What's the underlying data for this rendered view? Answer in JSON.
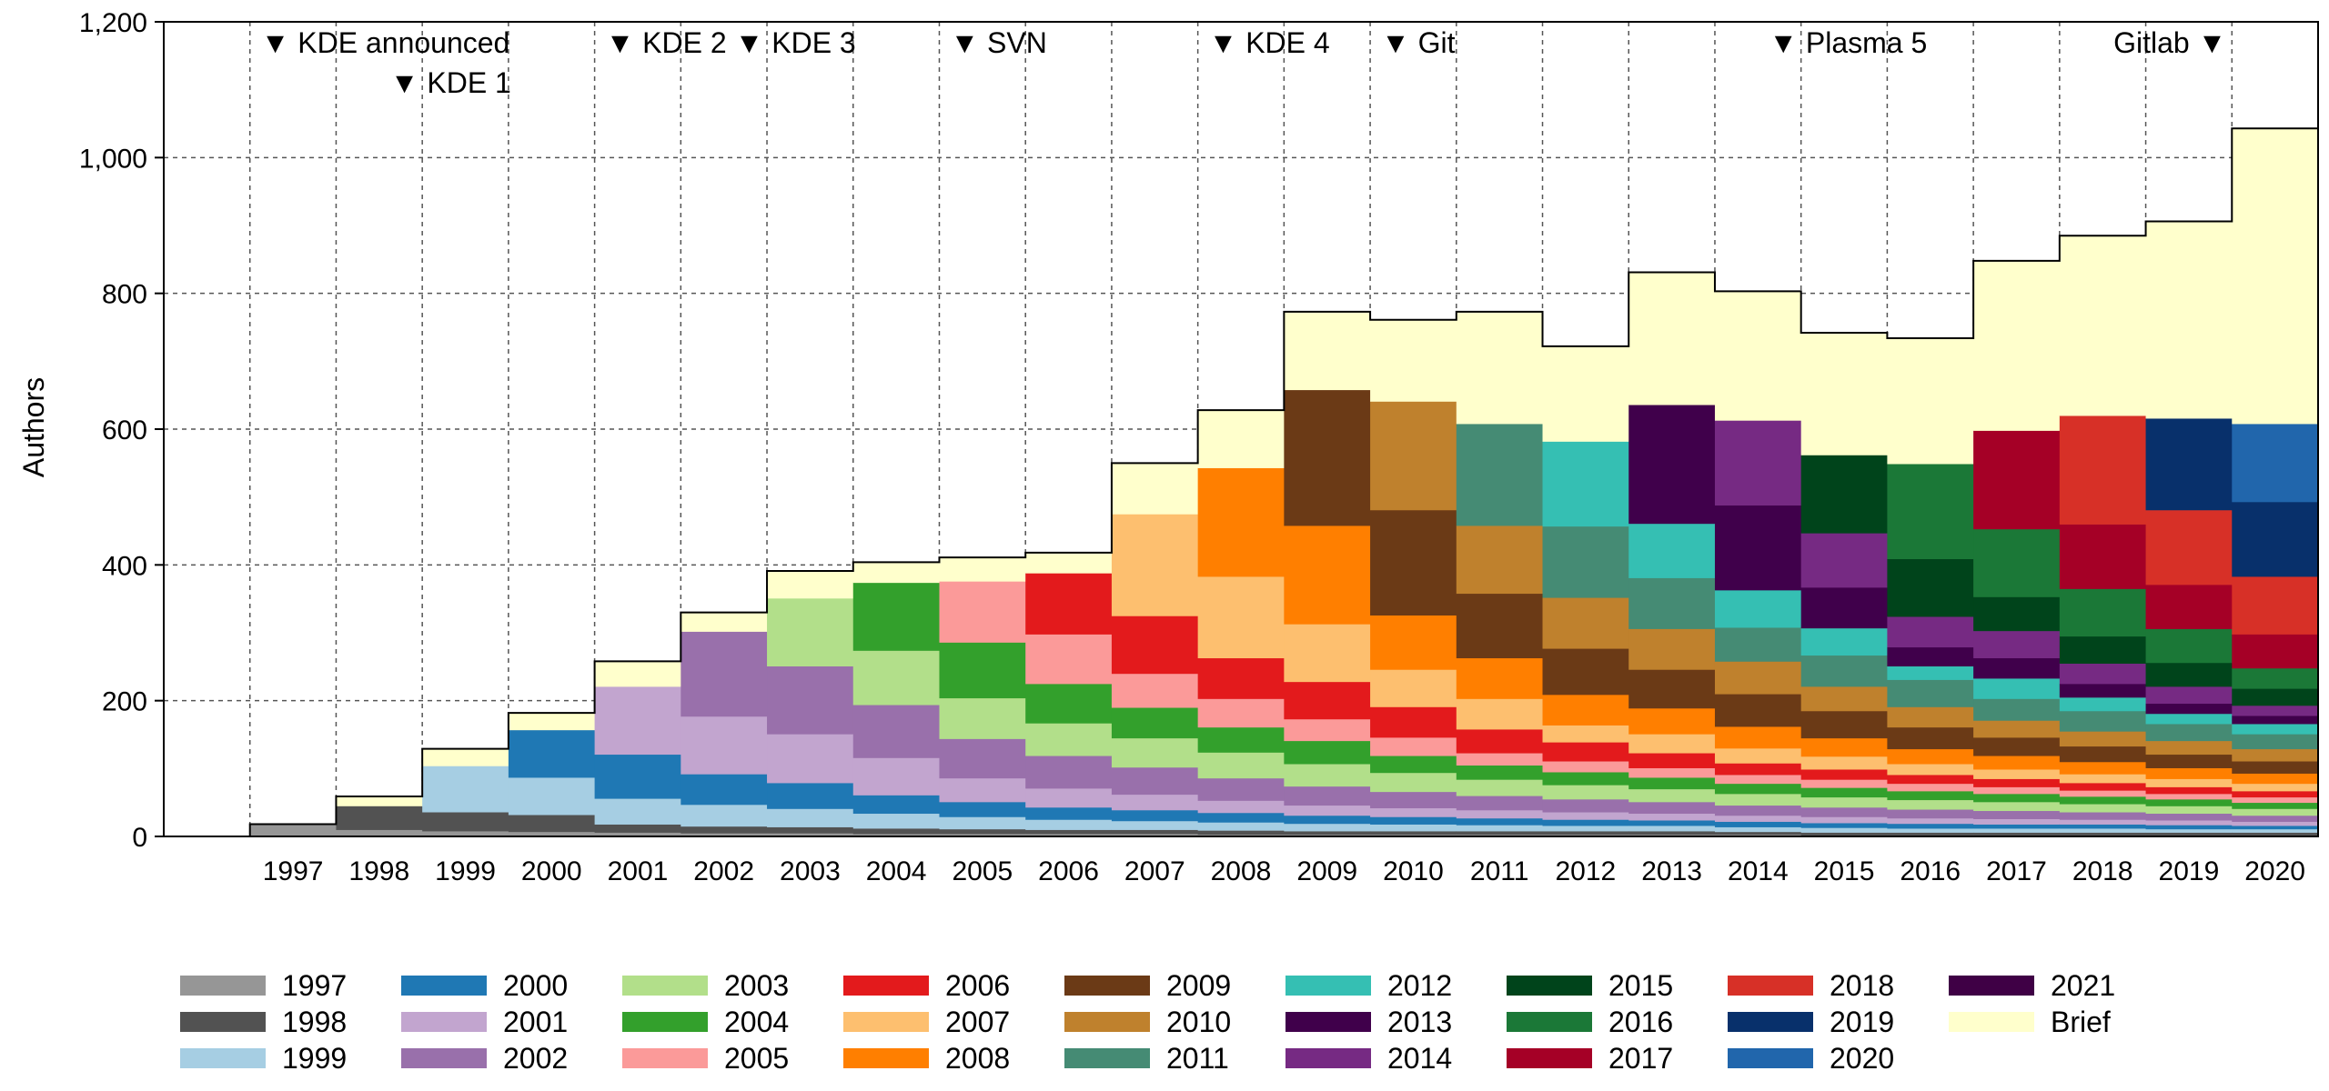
{
  "chart_data": {
    "type": "bar",
    "stacked": true,
    "title": "",
    "xlabel": "",
    "ylabel": "Authors",
    "ylim": [
      0,
      1200
    ],
    "yticks": [
      0,
      200,
      400,
      600,
      800,
      1000,
      1200
    ],
    "ytick_labels": [
      "0",
      "200",
      "400",
      "600",
      "800",
      "1,000",
      "1,200"
    ],
    "grid": true,
    "legend_position": "bottom",
    "categories": [
      "1997",
      "1998",
      "1999",
      "2000",
      "2001",
      "2002",
      "2003",
      "2004",
      "2005",
      "2006",
      "2007",
      "2008",
      "2009",
      "2010",
      "2011",
      "2012",
      "2013",
      "2014",
      "2015",
      "2016",
      "2017",
      "2018",
      "2019",
      "2020"
    ],
    "series": [
      {
        "name": "1997",
        "color": "#969696",
        "values": [
          18,
          10,
          8,
          7,
          6,
          5,
          5,
          4,
          4,
          4,
          4,
          3,
          3,
          3,
          3,
          3,
          3,
          3,
          2,
          2,
          2,
          2,
          2,
          2
        ]
      },
      {
        "name": "1998",
        "color": "#525252",
        "values": [
          0,
          35,
          28,
          25,
          12,
          10,
          9,
          8,
          7,
          6,
          6,
          6,
          5,
          5,
          5,
          5,
          5,
          4,
          4,
          4,
          4,
          4,
          4,
          4
        ]
      },
      {
        "name": "1999",
        "color": "#a6cee3",
        "values": [
          0,
          0,
          68,
          55,
          38,
          32,
          27,
          22,
          18,
          15,
          13,
          12,
          11,
          10,
          9,
          8,
          8,
          7,
          7,
          6,
          6,
          6,
          5,
          5
        ]
      },
      {
        "name": "2000",
        "color": "#1f78b4",
        "values": [
          0,
          0,
          0,
          70,
          65,
          45,
          38,
          27,
          22,
          18,
          16,
          14,
          12,
          11,
          10,
          9,
          8,
          8,
          7,
          7,
          6,
          6,
          6,
          5
        ]
      },
      {
        "name": "2001",
        "color": "#c2a5cf",
        "values": [
          0,
          0,
          0,
          0,
          100,
          85,
          72,
          55,
          35,
          28,
          23,
          18,
          15,
          13,
          12,
          11,
          10,
          9,
          9,
          8,
          8,
          7,
          7,
          6
        ]
      },
      {
        "name": "2002",
        "color": "#9970ab",
        "values": [
          0,
          0,
          0,
          0,
          0,
          125,
          100,
          78,
          58,
          48,
          40,
          33,
          28,
          24,
          21,
          19,
          17,
          15,
          14,
          13,
          12,
          11,
          10,
          9
        ]
      },
      {
        "name": "2003",
        "color": "#b2df8a",
        "values": [
          0,
          0,
          0,
          0,
          0,
          0,
          100,
          80,
          60,
          48,
          43,
          38,
          33,
          28,
          24,
          21,
          19,
          17,
          15,
          14,
          13,
          12,
          11,
          10
        ]
      },
      {
        "name": "2004",
        "color": "#33a02c",
        "values": [
          0,
          0,
          0,
          0,
          0,
          0,
          0,
          100,
          82,
          58,
          45,
          37,
          34,
          25,
          21,
          19,
          17,
          15,
          14,
          13,
          12,
          11,
          10,
          9
        ]
      },
      {
        "name": "2005",
        "color": "#fb9a99",
        "values": [
          0,
          0,
          0,
          0,
          0,
          0,
          0,
          0,
          90,
          73,
          50,
          42,
          32,
          27,
          18,
          16,
          14,
          13,
          12,
          11,
          10,
          9,
          8,
          8
        ]
      },
      {
        "name": "2006",
        "color": "#e31a1c",
        "values": [
          0,
          0,
          0,
          0,
          0,
          0,
          0,
          0,
          0,
          90,
          85,
          60,
          55,
          45,
          35,
          28,
          22,
          17,
          15,
          13,
          12,
          11,
          10,
          9
        ]
      },
      {
        "name": "2007",
        "color": "#fdbf6f",
        "values": [
          0,
          0,
          0,
          0,
          0,
          0,
          0,
          0,
          0,
          0,
          150,
          120,
          85,
          55,
          45,
          25,
          28,
          22,
          19,
          16,
          14,
          13,
          12,
          11
        ]
      },
      {
        "name": "2008",
        "color": "#ff7f00",
        "values": [
          0,
          0,
          0,
          0,
          0,
          0,
          0,
          0,
          0,
          0,
          0,
          160,
          145,
          80,
          60,
          45,
          38,
          32,
          27,
          22,
          20,
          18,
          16,
          15
        ]
      },
      {
        "name": "2009",
        "color": "#6b3a16",
        "values": [
          0,
          0,
          0,
          0,
          0,
          0,
          0,
          0,
          0,
          0,
          0,
          0,
          200,
          155,
          95,
          68,
          57,
          48,
          40,
          32,
          27,
          23,
          20,
          18
        ]
      },
      {
        "name": "2010",
        "color": "#bf812d",
        "values": [
          0,
          0,
          0,
          0,
          0,
          0,
          0,
          0,
          0,
          0,
          0,
          0,
          0,
          160,
          100,
          75,
          60,
          48,
          36,
          30,
          25,
          22,
          20,
          18
        ]
      },
      {
        "name": "2011",
        "color": "#458b74",
        "values": [
          0,
          0,
          0,
          0,
          0,
          0,
          0,
          0,
          0,
          0,
          0,
          0,
          0,
          0,
          150,
          105,
          75,
          50,
          46,
          40,
          32,
          30,
          25,
          22
        ]
      },
      {
        "name": "2012",
        "color": "#35bfb3",
        "values": [
          0,
          0,
          0,
          0,
          0,
          0,
          0,
          0,
          0,
          0,
          0,
          0,
          0,
          0,
          0,
          125,
          80,
          55,
          40,
          20,
          30,
          20,
          15,
          15
        ]
      },
      {
        "name": "2013",
        "color": "#40004b",
        "values": [
          0,
          0,
          0,
          0,
          0,
          0,
          0,
          0,
          0,
          0,
          0,
          0,
          0,
          0,
          0,
          0,
          175,
          125,
          60,
          28,
          30,
          20,
          15,
          12
        ]
      },
      {
        "name": "2014",
        "color": "#762a83",
        "values": [
          0,
          0,
          0,
          0,
          0,
          0,
          0,
          0,
          0,
          0,
          0,
          0,
          0,
          0,
          0,
          0,
          0,
          125,
          80,
          45,
          40,
          30,
          25,
          15
        ]
      },
      {
        "name": "2015",
        "color": "#00441b",
        "values": [
          0,
          0,
          0,
          0,
          0,
          0,
          0,
          0,
          0,
          0,
          0,
          0,
          0,
          0,
          0,
          0,
          0,
          0,
          115,
          85,
          50,
          40,
          35,
          25
        ]
      },
      {
        "name": "2016",
        "color": "#1b7837",
        "values": [
          0,
          0,
          0,
          0,
          0,
          0,
          0,
          0,
          0,
          0,
          0,
          0,
          0,
          0,
          0,
          0,
          0,
          0,
          0,
          140,
          100,
          70,
          50,
          30
        ]
      },
      {
        "name": "2017",
        "color": "#a50026",
        "values": [
          0,
          0,
          0,
          0,
          0,
          0,
          0,
          0,
          0,
          0,
          0,
          0,
          0,
          0,
          0,
          0,
          0,
          0,
          0,
          0,
          145,
          95,
          65,
          50
        ]
      },
      {
        "name": "2018",
        "color": "#d73027",
        "values": [
          0,
          0,
          0,
          0,
          0,
          0,
          0,
          0,
          0,
          0,
          0,
          0,
          0,
          0,
          0,
          0,
          0,
          0,
          0,
          0,
          0,
          160,
          110,
          85
        ]
      },
      {
        "name": "2019",
        "color": "#08306b",
        "values": [
          0,
          0,
          0,
          0,
          0,
          0,
          0,
          0,
          0,
          0,
          0,
          0,
          0,
          0,
          0,
          0,
          0,
          0,
          0,
          0,
          0,
          0,
          135,
          110
        ]
      },
      {
        "name": "2020",
        "color": "#2166ac",
        "values": [
          0,
          0,
          0,
          0,
          0,
          0,
          0,
          0,
          0,
          0,
          0,
          0,
          0,
          0,
          0,
          0,
          0,
          0,
          0,
          0,
          0,
          0,
          0,
          115
        ]
      },
      {
        "name": "2021",
        "color": "#3f0045",
        "values": [
          0,
          0,
          0,
          0,
          0,
          0,
          0,
          0,
          0,
          0,
          0,
          0,
          0,
          0,
          0,
          0,
          0,
          0,
          0,
          0,
          0,
          0,
          0,
          0
        ]
      },
      {
        "name": "Brief",
        "color": "#ffffcc",
        "values": [
          0,
          14,
          25,
          25,
          37,
          28,
          40,
          30,
          35,
          30,
          75,
          85,
          115,
          120,
          165,
          140,
          195,
          190,
          180,
          185,
          250,
          265,
          290,
          435
        ]
      }
    ],
    "annotations": [
      {
        "label": "▼ KDE announced",
        "x": 1997,
        "row": 1
      },
      {
        "label": "▼ KDE 1",
        "x": 1998.5,
        "row": 2
      },
      {
        "label": "▼ KDE 2",
        "x": 2001,
        "row": 1
      },
      {
        "label": "▼ KDE 3",
        "x": 2002.5,
        "row": 1
      },
      {
        "label": "▼ SVN",
        "x": 2005,
        "row": 1
      },
      {
        "label": "▼ KDE 4",
        "x": 2008,
        "row": 1
      },
      {
        "label": "▼ Git",
        "x": 2010,
        "row": 1
      },
      {
        "label": "▼ Plasma 5",
        "x": 2014.5,
        "row": 1
      },
      {
        "label": "Gitlab ▼",
        "x": 2020,
        "row": 1
      }
    ]
  }
}
